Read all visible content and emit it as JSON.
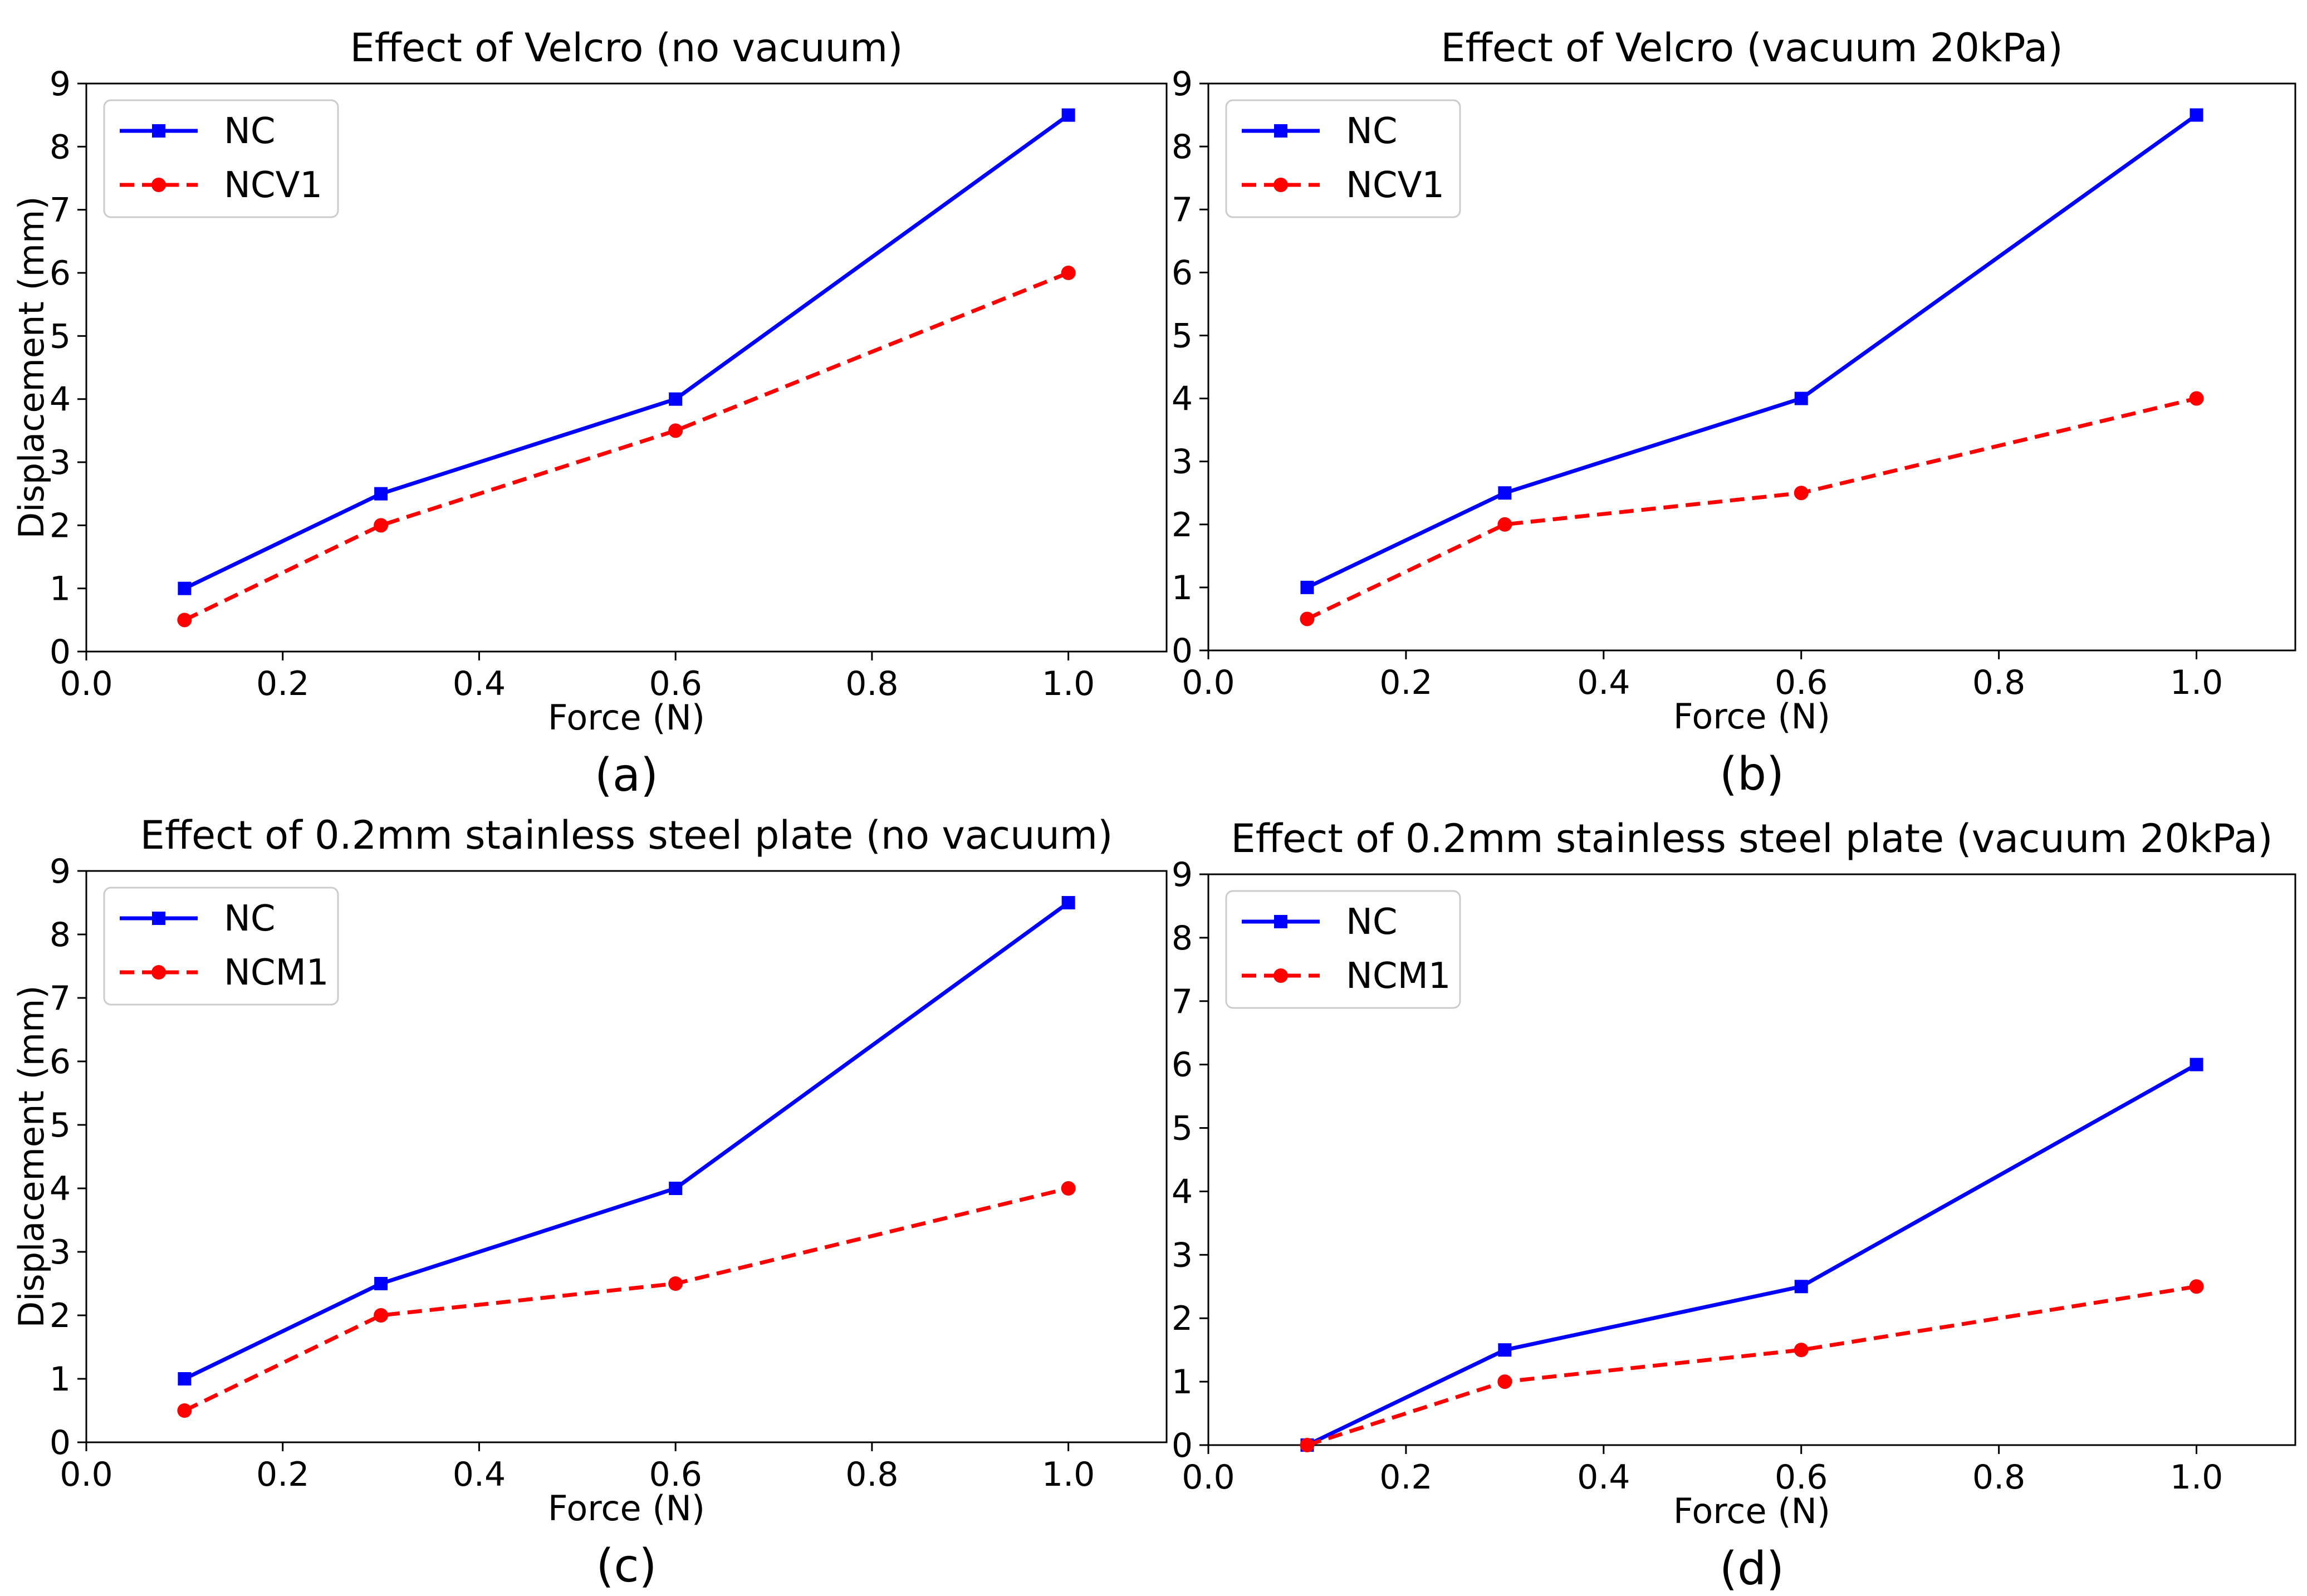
{
  "chart_data": [
    {
      "type": "line",
      "panel": "a",
      "title": "Effect of Velcro (no vacuum)",
      "caption": "(a)",
      "xlabel": "Force (N)",
      "ylabel": "Displacement (mm)",
      "xlim": [
        0.0,
        1.1
      ],
      "ylim": [
        0,
        9
      ],
      "xticks": [
        0.0,
        0.2,
        0.4,
        0.6,
        0.8,
        1.0
      ],
      "yticks": [
        0,
        1,
        2,
        3,
        4,
        5,
        6,
        7,
        8,
        9
      ],
      "grid": false,
      "legend_position": "top-left",
      "series": [
        {
          "name": "NC",
          "color": "#0000ff",
          "style": "solid",
          "marker": "square",
          "x": [
            0.1,
            0.3,
            0.6,
            1.0
          ],
          "y": [
            1.0,
            2.5,
            4.0,
            8.5
          ]
        },
        {
          "name": "NCV1",
          "color": "#ff0000",
          "style": "dashed",
          "marker": "circle",
          "x": [
            0.1,
            0.3,
            0.6,
            1.0
          ],
          "y": [
            0.5,
            2.0,
            3.5,
            6.0
          ]
        }
      ]
    },
    {
      "type": "line",
      "panel": "b",
      "title": "Effect of Velcro (vacuum 20kPa)",
      "caption": "(b)",
      "xlabel": "Force (N)",
      "ylabel": "",
      "xlim": [
        0.0,
        1.1
      ],
      "ylim": [
        0,
        9
      ],
      "xticks": [
        0.0,
        0.2,
        0.4,
        0.6,
        0.8,
        1.0
      ],
      "yticks": [
        0,
        1,
        2,
        3,
        4,
        5,
        6,
        7,
        8,
        9
      ],
      "grid": false,
      "legend_position": "top-left",
      "series": [
        {
          "name": "NC",
          "color": "#0000ff",
          "style": "solid",
          "marker": "square",
          "x": [
            0.1,
            0.3,
            0.6,
            1.0
          ],
          "y": [
            1.0,
            2.5,
            4.0,
            8.5
          ]
        },
        {
          "name": "NCV1",
          "color": "#ff0000",
          "style": "dashed",
          "marker": "circle",
          "x": [
            0.1,
            0.3,
            0.6,
            1.0
          ],
          "y": [
            0.5,
            2.0,
            2.5,
            4.0
          ]
        }
      ]
    },
    {
      "type": "line",
      "panel": "c",
      "title": "Effect of 0.2mm stainless steel plate (no vacuum)",
      "caption": "(c)",
      "xlabel": "Force (N)",
      "ylabel": "Displacement (mm)",
      "xlim": [
        0.0,
        1.1
      ],
      "ylim": [
        0,
        9
      ],
      "xticks": [
        0.0,
        0.2,
        0.4,
        0.6,
        0.8,
        1.0
      ],
      "yticks": [
        0,
        1,
        2,
        3,
        4,
        5,
        6,
        7,
        8,
        9
      ],
      "grid": false,
      "legend_position": "top-left",
      "series": [
        {
          "name": "NC",
          "color": "#0000ff",
          "style": "solid",
          "marker": "square",
          "x": [
            0.1,
            0.3,
            0.6,
            1.0
          ],
          "y": [
            1.0,
            2.5,
            4.0,
            8.5
          ]
        },
        {
          "name": "NCM1",
          "color": "#ff0000",
          "style": "dashed",
          "marker": "circle",
          "x": [
            0.1,
            0.3,
            0.6,
            1.0
          ],
          "y": [
            0.5,
            2.0,
            2.5,
            4.0
          ]
        }
      ]
    },
    {
      "type": "line",
      "panel": "d",
      "title": "Effect of 0.2mm stainless steel plate (vacuum 20kPa)",
      "caption": "(d)",
      "xlabel": "Force (N)",
      "ylabel": "",
      "xlim": [
        0.0,
        1.1
      ],
      "ylim": [
        0,
        9
      ],
      "xticks": [
        0.0,
        0.2,
        0.4,
        0.6,
        0.8,
        1.0
      ],
      "yticks": [
        0,
        1,
        2,
        3,
        4,
        5,
        6,
        7,
        8,
        9
      ],
      "grid": false,
      "legend_position": "top-left",
      "series": [
        {
          "name": "NC",
          "color": "#0000ff",
          "style": "solid",
          "marker": "square",
          "x": [
            0.1,
            0.3,
            0.6,
            1.0
          ],
          "y": [
            0.0,
            1.5,
            2.5,
            6.0
          ]
        },
        {
          "name": "NCM1",
          "color": "#ff0000",
          "style": "dashed",
          "marker": "circle",
          "x": [
            0.1,
            0.3,
            0.6,
            1.0
          ],
          "y": [
            0.0,
            1.0,
            1.5,
            2.5
          ]
        }
      ]
    }
  ]
}
